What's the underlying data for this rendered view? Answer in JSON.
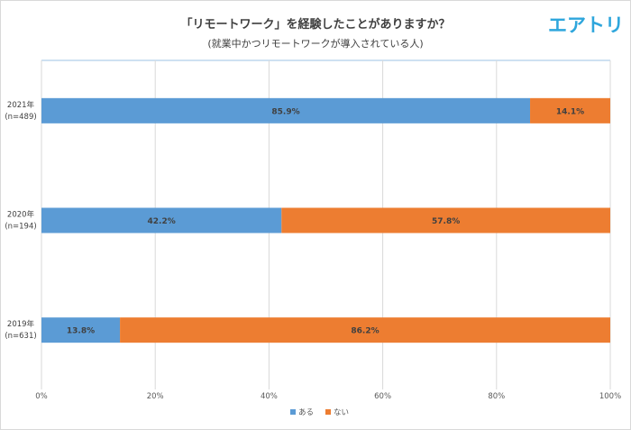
{
  "logo_text": "エアトリ",
  "chart_data": {
    "type": "bar",
    "orientation": "horizontal",
    "stacked": "percent",
    "title": "「リモートワーク」を経験したことがありますか？",
    "subtitle": "(就業中かつリモートワークが導入されている人)",
    "categories": [
      {
        "year": "2021年",
        "n": "(n=489)"
      },
      {
        "year": "2020年",
        "n": "(n=194)"
      },
      {
        "year": "2019年",
        "n": "(n=631)"
      }
    ],
    "series": [
      {
        "name": "ある",
        "color": "#5b9bd5",
        "values": [
          85.9,
          42.2,
          13.8
        ],
        "labels": [
          "85.9%",
          "42.2%",
          "13.8%"
        ]
      },
      {
        "name": "ない",
        "color": "#ed7d31",
        "values": [
          14.1,
          57.8,
          86.2
        ],
        "labels": [
          "14.1%",
          "57.8%",
          "86.2%"
        ]
      }
    ],
    "xlim": [
      0,
      100
    ],
    "xticks": [
      "0%",
      "20%",
      "40%",
      "60%",
      "80%",
      "100%"
    ],
    "grid": true,
    "legend": "bottom"
  }
}
